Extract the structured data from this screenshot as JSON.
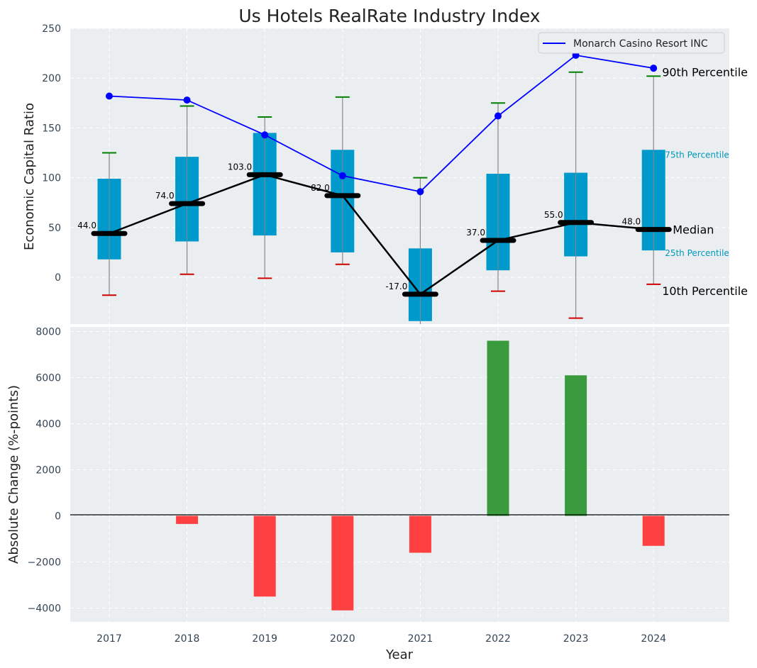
{
  "chart_data": {
    "title": "Us Hotels RealRate Industry Index",
    "xlabel": "Year",
    "years": [
      "2017",
      "2018",
      "2019",
      "2020",
      "2021",
      "2022",
      "2023",
      "2024"
    ],
    "top": {
      "type": "box",
      "ylabel": "Economic Capital Ratio",
      "ylim": [
        -47,
        250
      ],
      "yticks": [
        0,
        50,
        100,
        150,
        200,
        250
      ],
      "grid": true,
      "p10": [
        -18,
        3,
        -1,
        13,
        null,
        -14,
        -41,
        -7
      ],
      "p25": [
        18,
        36,
        42,
        25,
        -44,
        7,
        21,
        27
      ],
      "median": [
        44,
        74,
        103,
        82,
        -17,
        37,
        55,
        48
      ],
      "p75": [
        99,
        121,
        145,
        128,
        29,
        104,
        105,
        128
      ],
      "p90": [
        125,
        172,
        161,
        181,
        100,
        175,
        206,
        202
      ],
      "median_labels": [
        "44.0",
        "74.0",
        "103.0",
        "82.0",
        "-17.0",
        "37.0",
        "55.0",
        "48.0"
      ],
      "series": {
        "name": "Monarch Casino Resort INC",
        "values": [
          182,
          178,
          143,
          102,
          86,
          162,
          223,
          210
        ]
      },
      "annotations": {
        "p90": "90th Percentile",
        "p75": "75th Percentile",
        "median": "Median",
        "p25": "25th Percentile",
        "p10": "10th Percentile"
      },
      "legend_position": "top-right"
    },
    "bottom": {
      "type": "bar",
      "ylabel": "Absolute Change (%-points)",
      "ylim": [
        -4600,
        8200
      ],
      "yticks": [
        -4000,
        -2000,
        0,
        2000,
        4000,
        6000,
        8000
      ],
      "ytick_labels": [
        "−4000",
        "−2000",
        "0",
        "2000",
        "4000",
        "6000",
        "8000"
      ],
      "values": [
        0,
        -350,
        -3500,
        -4100,
        -1600,
        7600,
        6100,
        -1300
      ],
      "grid": true
    },
    "colors": {
      "background": "#eaeef0",
      "box": "#0099cc",
      "series": "#0000ff",
      "median": "#000000",
      "p90_cap": "#008000",
      "p10_cap": "#d00000",
      "positive": "#3a9a3e",
      "negative": "#ff4040",
      "p75_annotation": "#0099bb"
    }
  }
}
